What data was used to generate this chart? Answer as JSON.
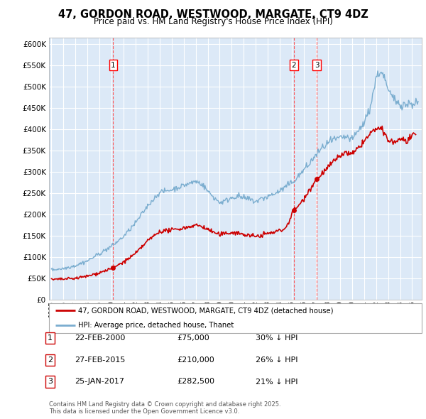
{
  "title": "47, GORDON ROAD, WESTWOOD, MARGATE, CT9 4DZ",
  "subtitle": "Price paid vs. HM Land Registry's House Price Index (HPI)",
  "ytick_values": [
    0,
    50000,
    100000,
    150000,
    200000,
    250000,
    300000,
    350000,
    400000,
    450000,
    500000,
    550000,
    600000
  ],
  "ylim": [
    0,
    615000
  ],
  "xlim_start": 1994.8,
  "xlim_end": 2025.8,
  "plot_bg_color": "#dce9f7",
  "red_line_color": "#cc0000",
  "blue_line_color": "#7aadcf",
  "vline_color": "#ff4444",
  "sale_points": [
    {
      "date_num": 2000.14,
      "price": 75000,
      "label": "1"
    },
    {
      "date_num": 2015.15,
      "price": 210000,
      "label": "2"
    },
    {
      "date_num": 2017.07,
      "price": 282500,
      "label": "3"
    }
  ],
  "legend_entries": [
    {
      "label": "47, GORDON ROAD, WESTWOOD, MARGATE, CT9 4DZ (detached house)",
      "color": "#cc0000"
    },
    {
      "label": "HPI: Average price, detached house, Thanet",
      "color": "#7aadcf"
    }
  ],
  "table_entries": [
    {
      "num": "1",
      "date": "22-FEB-2000",
      "price": "£75,000",
      "hpi": "30% ↓ HPI"
    },
    {
      "num": "2",
      "date": "27-FEB-2015",
      "price": "£210,000",
      "hpi": "26% ↓ HPI"
    },
    {
      "num": "3",
      "date": "25-JAN-2017",
      "price": "£282,500",
      "hpi": "21% ↓ HPI"
    }
  ],
  "footer": "Contains HM Land Registry data © Crown copyright and database right 2025.\nThis data is licensed under the Open Government Licence v3.0.",
  "grid_color": "#ffffff"
}
